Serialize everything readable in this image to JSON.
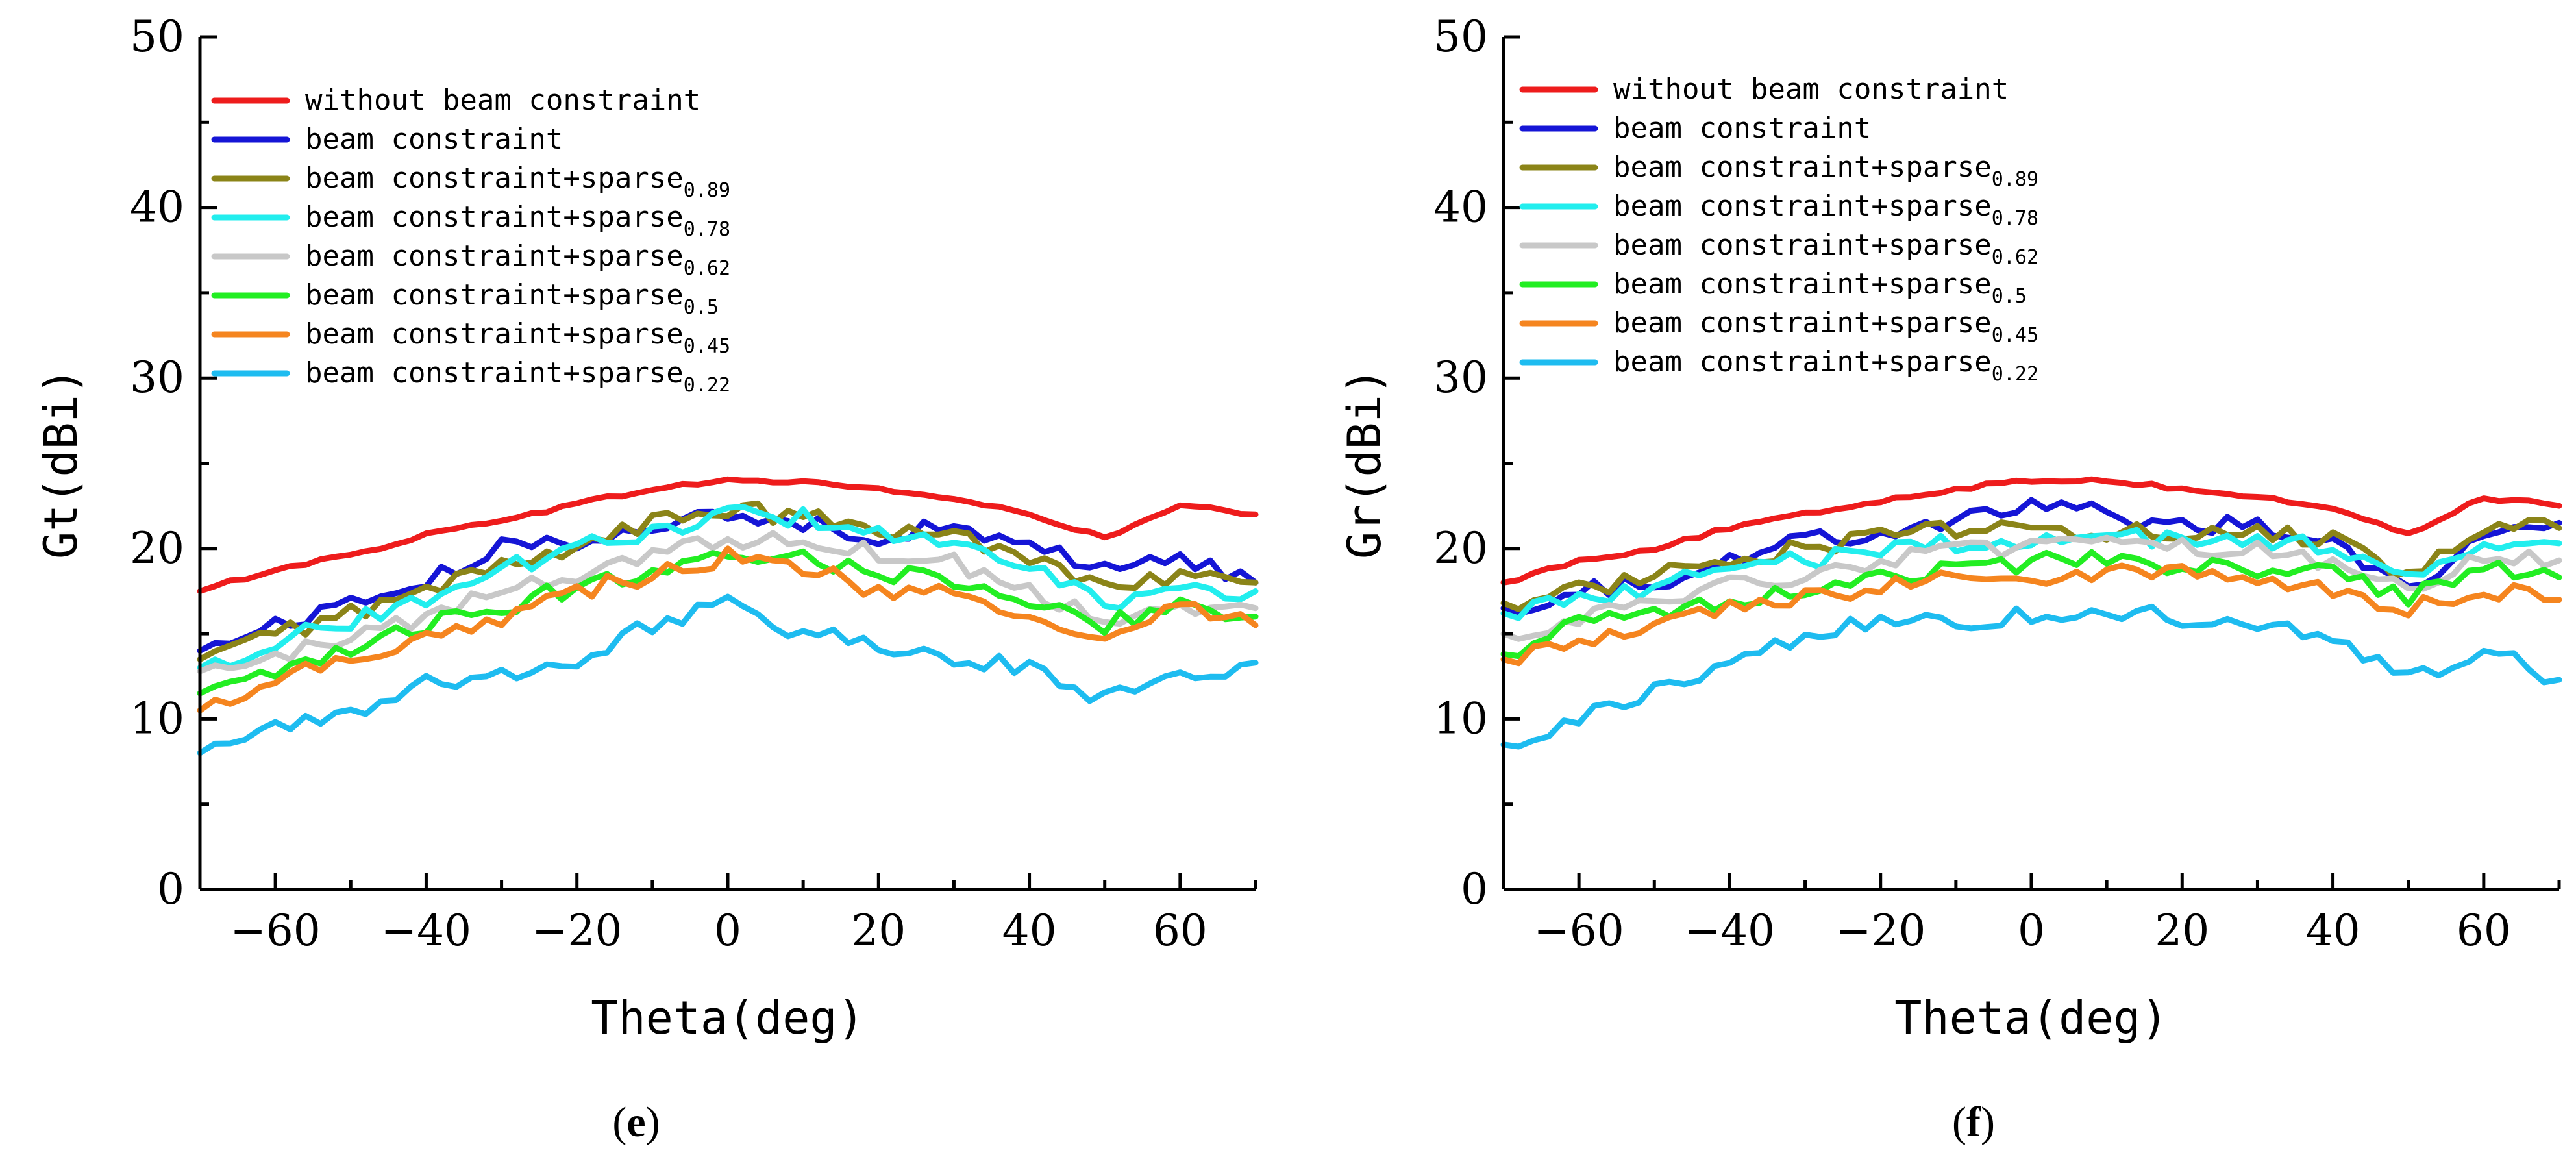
{
  "chart_data": [
    {
      "type": "line",
      "panel_label": {
        "open": "(",
        "letter": "e",
        "close": ")"
      },
      "xlabel": "Theta(deg)",
      "ylabel": "Gt(dBi)",
      "xlim": [
        -70,
        70
      ],
      "ylim": [
        0,
        50
      ],
      "xticks": [
        -60,
        -40,
        -20,
        0,
        20,
        40,
        60
      ],
      "yticks": [
        0,
        10,
        20,
        30,
        40,
        50
      ],
      "legend_position": "top-left",
      "x": [
        -70,
        -60,
        -50,
        -40,
        -30,
        -20,
        -10,
        0,
        10,
        20,
        30,
        40,
        50,
        60,
        70
      ],
      "series": [
        {
          "name": "without beam constraint",
          "base": "without beam constraint",
          "sub": "",
          "color": "#ee1c1c",
          "values": [
            17.5,
            18.8,
            19.6,
            20.8,
            21.7,
            22.6,
            23.5,
            24.0,
            23.9,
            23.5,
            22.9,
            22.0,
            20.6,
            22.5,
            22.0
          ]
        },
        {
          "name": "beam constraint",
          "base": "beam constraint",
          "sub": "",
          "color": "#1515d6",
          "values": [
            14.0,
            15.5,
            16.8,
            18.0,
            20.0,
            20.5,
            21.5,
            21.8,
            21.5,
            20.8,
            21.2,
            20.0,
            19.0,
            19.5,
            18.0
          ]
        },
        {
          "name": "beam constraint+sparse0.89",
          "base": "beam constraint+sparse",
          "sub": "0.89",
          "color": "#8b8418",
          "values": [
            13.5,
            15.0,
            16.2,
            17.5,
            19.0,
            20.2,
            21.5,
            22.3,
            21.8,
            21.0,
            20.8,
            19.5,
            18.0,
            18.5,
            18.0
          ]
        },
        {
          "name": "beam constraint+sparse0.78",
          "base": "beam constraint+sparse",
          "sub": "0.78",
          "color": "#22eeee",
          "values": [
            13.0,
            14.5,
            15.8,
            17.0,
            18.8,
            20.0,
            21.0,
            22.0,
            21.8,
            21.0,
            20.0,
            18.8,
            16.8,
            17.5,
            17.5
          ]
        },
        {
          "name": "beam constraint+sparse0.62",
          "base": "beam constraint+sparse",
          "sub": "0.62",
          "color": "#c8c8c8",
          "values": [
            12.8,
            13.5,
            15.0,
            16.0,
            17.5,
            18.5,
            19.8,
            20.5,
            20.5,
            19.8,
            19.2,
            17.5,
            16.0,
            16.5,
            16.5
          ]
        },
        {
          "name": "beam constraint+sparse0.5",
          "base": "beam constraint+sparse",
          "sub": "0.5",
          "color": "#22ee22",
          "values": [
            11.5,
            12.5,
            14.0,
            15.5,
            16.5,
            17.8,
            18.8,
            19.8,
            19.5,
            18.5,
            18.3,
            17.0,
            15.5,
            16.8,
            16.0
          ]
        },
        {
          "name": "beam constraint+sparse0.45",
          "base": "beam constraint+sparse",
          "sub": "0.45",
          "color": "#f5851f",
          "values": [
            10.5,
            12.5,
            13.5,
            15.0,
            16.0,
            17.5,
            18.5,
            19.5,
            18.8,
            17.5,
            17.8,
            16.0,
            14.2,
            16.5,
            15.5
          ]
        },
        {
          "name": "beam constraint+sparse0.22",
          "base": "beam constraint+sparse",
          "sub": "0.22",
          "color": "#1ebcf0",
          "values": [
            8.0,
            9.5,
            10.5,
            12.0,
            12.5,
            13.5,
            15.5,
            17.0,
            15.0,
            14.5,
            13.5,
            13.0,
            11.2,
            12.5,
            13.3
          ]
        }
      ]
    },
    {
      "type": "line",
      "panel_label": {
        "open": "(",
        "letter": "f",
        "close": ")"
      },
      "xlabel": "Theta(deg)",
      "ylabel": "Gr(dBi)",
      "xlim": [
        -70,
        70
      ],
      "ylim": [
        0,
        50
      ],
      "xticks": [
        -60,
        -40,
        -20,
        0,
        20,
        40,
        60
      ],
      "yticks": [
        0,
        10,
        20,
        30,
        40,
        50
      ],
      "legend_position": "top-left",
      "x": [
        -70,
        -60,
        -50,
        -40,
        -30,
        -20,
        -10,
        0,
        10,
        20,
        30,
        40,
        50,
        60,
        70
      ],
      "series": [
        {
          "name": "without beam constraint",
          "base": "without beam constraint",
          "sub": "",
          "color": "#ee1c1c",
          "values": [
            18.0,
            19.3,
            20.0,
            21.2,
            22.0,
            22.8,
            23.5,
            24.0,
            24.0,
            23.5,
            23.0,
            22.4,
            20.8,
            23.0,
            22.5
          ]
        },
        {
          "name": "beam constraint",
          "base": "beam constraint",
          "sub": "",
          "color": "#1515d6",
          "values": [
            16.5,
            17.5,
            18.0,
            19.5,
            20.5,
            21.0,
            21.8,
            22.5,
            22.0,
            21.2,
            21.5,
            20.5,
            17.5,
            21.0,
            21.5
          ]
        },
        {
          "name": "beam constraint+sparse0.89",
          "base": "beam constraint+sparse",
          "sub": "0.89",
          "color": "#8b8418",
          "values": [
            16.8,
            17.5,
            18.5,
            19.5,
            20.0,
            20.8,
            21.0,
            21.2,
            21.0,
            20.8,
            21.0,
            20.5,
            18.5,
            21.2,
            21.2
          ]
        },
        {
          "name": "beam constraint+sparse0.78",
          "base": "beam constraint+sparse",
          "sub": "0.78",
          "color": "#22eeee",
          "values": [
            16.2,
            17.2,
            17.8,
            18.8,
            19.3,
            20.0,
            20.3,
            20.5,
            20.8,
            20.5,
            20.3,
            20.2,
            18.5,
            20.5,
            20.3
          ]
        },
        {
          "name": "beam constraint+sparse0.62",
          "base": "beam constraint+sparse",
          "sub": "0.62",
          "color": "#c8c8c8",
          "values": [
            15.0,
            15.8,
            16.8,
            17.8,
            18.5,
            19.3,
            19.8,
            20.0,
            20.2,
            20.0,
            19.8,
            19.3,
            17.8,
            19.5,
            19.3
          ]
        },
        {
          "name": "beam constraint+sparse0.5",
          "base": "beam constraint+sparse",
          "sub": "0.5",
          "color": "#22ee22",
          "values": [
            13.8,
            15.5,
            16.2,
            17.0,
            17.8,
            18.3,
            18.8,
            19.2,
            19.3,
            19.0,
            18.8,
            18.5,
            17.0,
            19.0,
            18.3
          ]
        },
        {
          "name": "beam constraint+sparse0.45",
          "base": "beam constraint+sparse",
          "sub": "0.45",
          "color": "#f5851f",
          "values": [
            13.5,
            14.5,
            15.2,
            16.5,
            17.2,
            17.8,
            18.3,
            18.3,
            18.5,
            18.8,
            18.3,
            17.5,
            16.5,
            17.5,
            17.0
          ]
        },
        {
          "name": "beam constraint+sparse0.22",
          "base": "beam constraint+sparse",
          "sub": "0.22",
          "color": "#1ebcf0",
          "values": [
            8.5,
            10.0,
            11.5,
            13.5,
            14.8,
            16.0,
            15.5,
            16.2,
            16.5,
            16.0,
            15.5,
            14.5,
            12.2,
            14.2,
            12.3
          ]
        }
      ]
    }
  ]
}
